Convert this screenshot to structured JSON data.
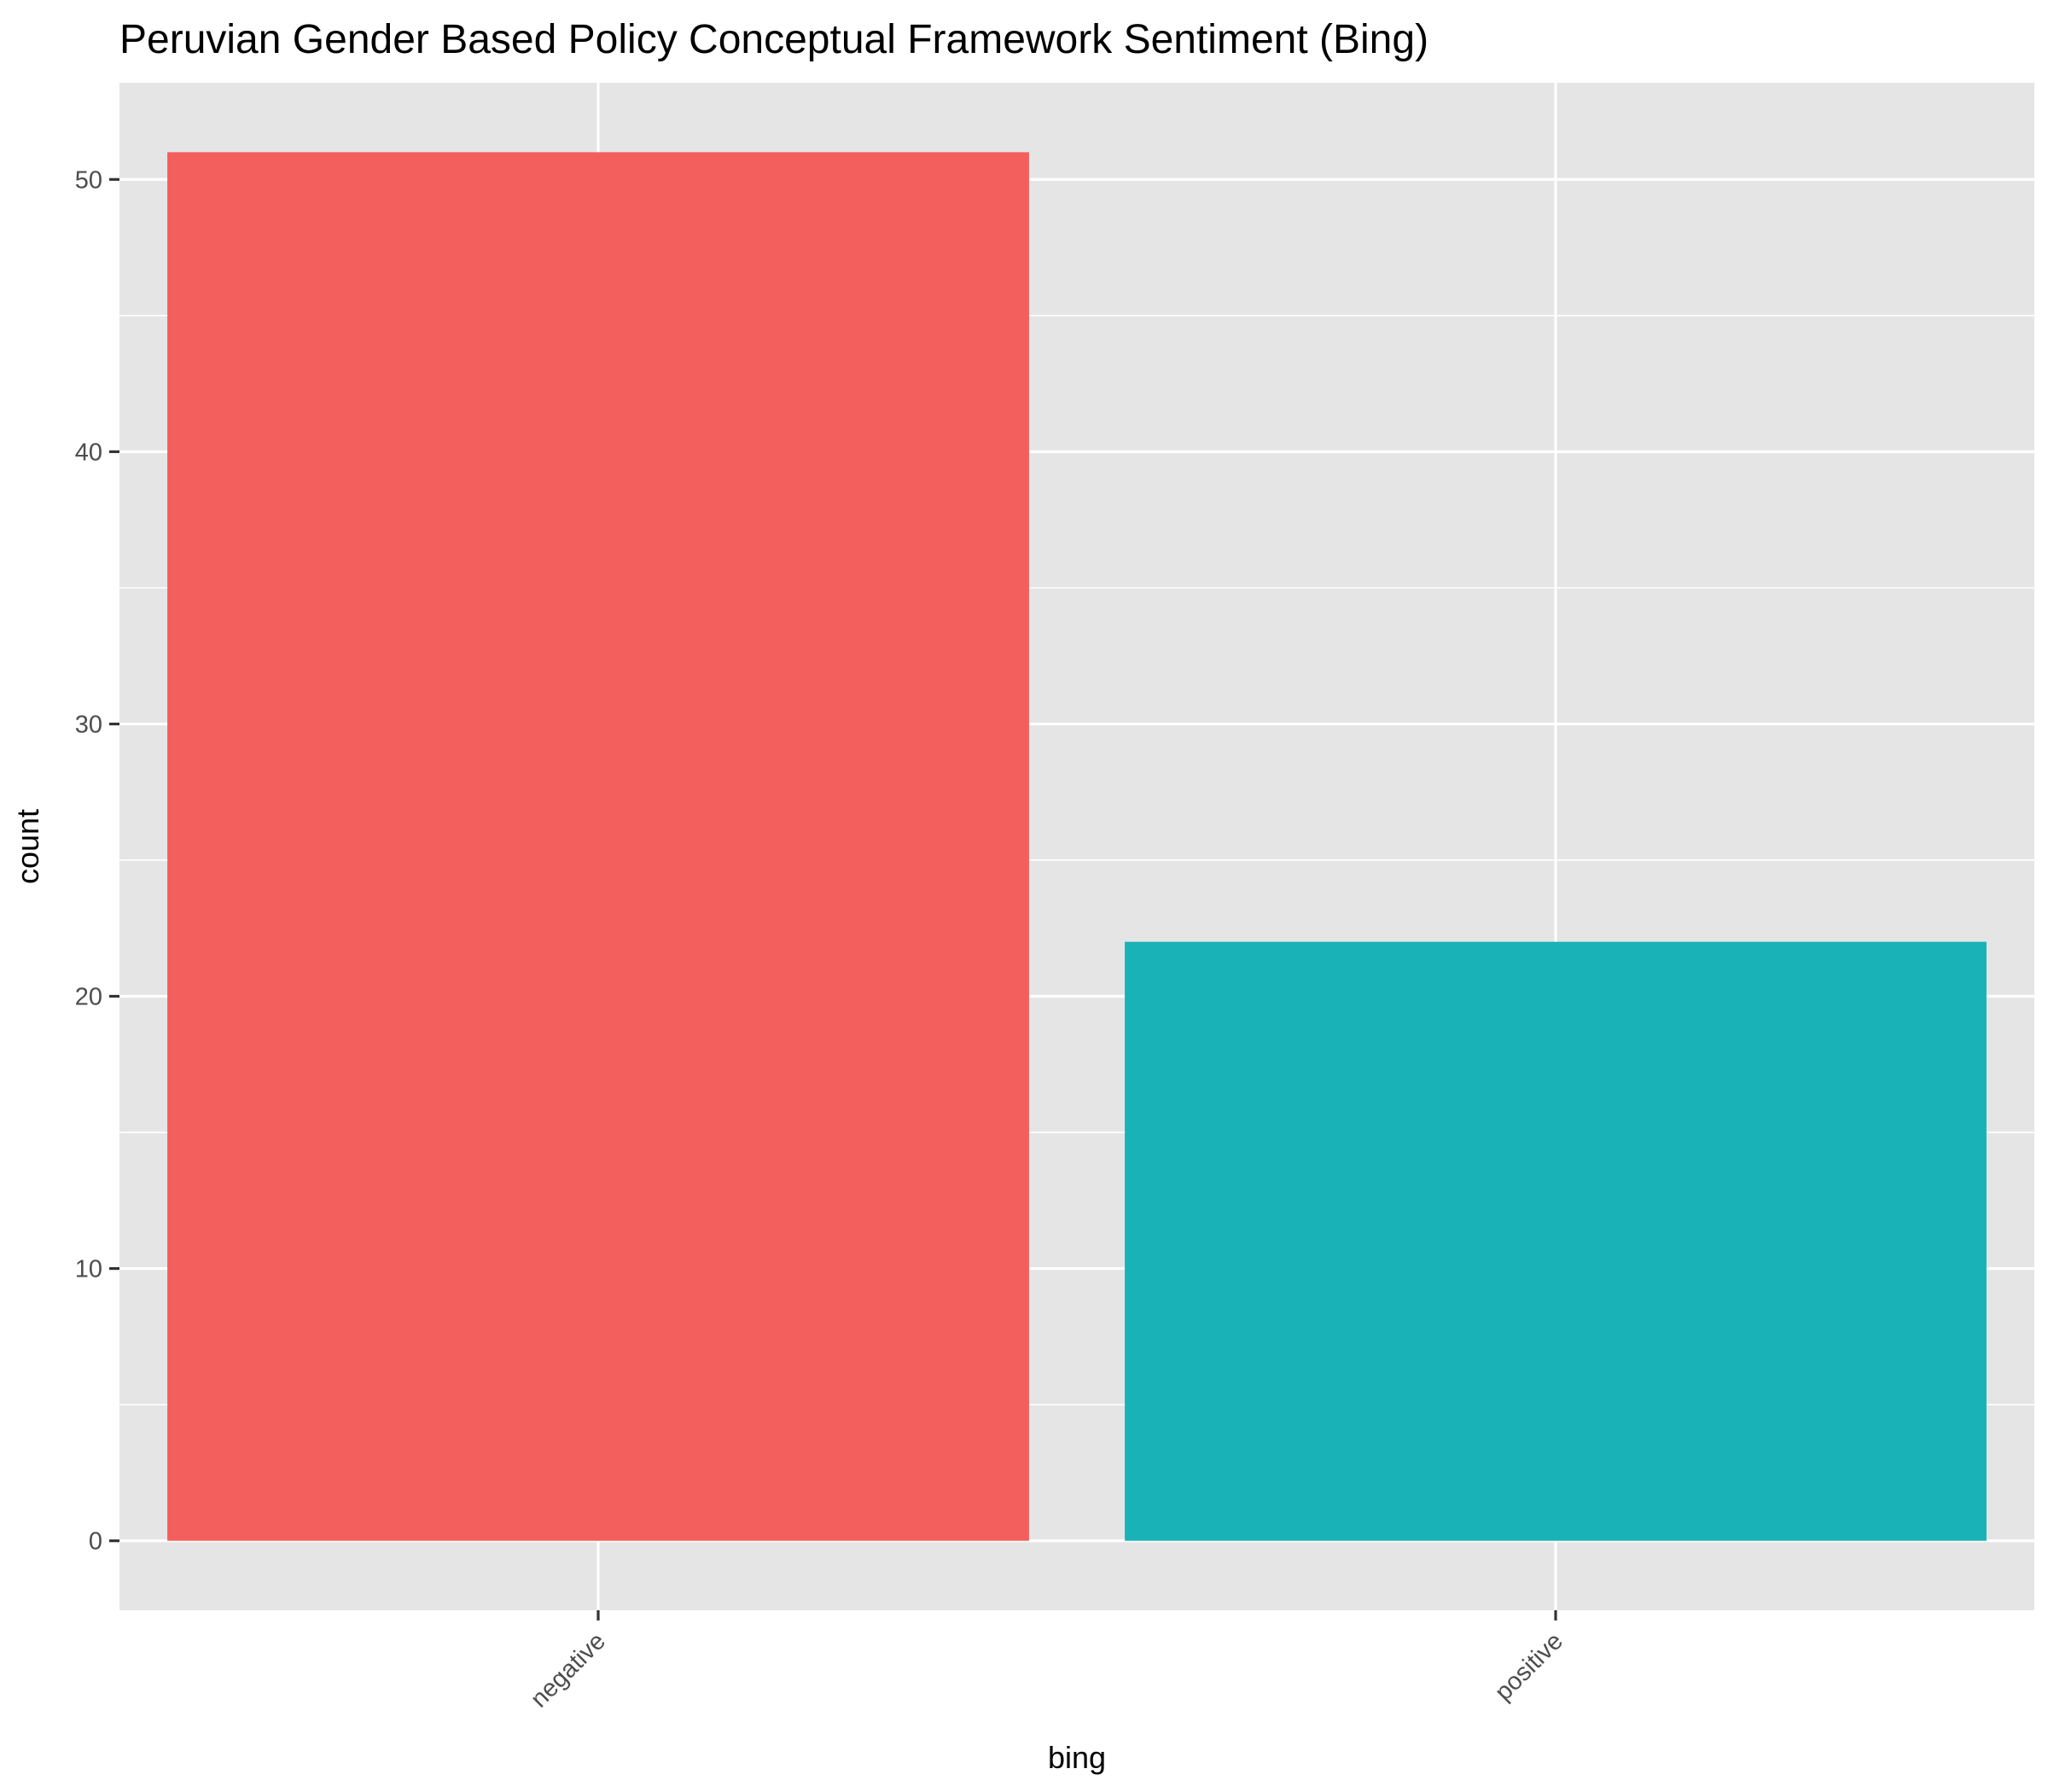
{
  "chart_data": {
    "type": "bar",
    "title": "Peruvian Gender Based Policy Conceptual Framework Sentiment (Bing)",
    "xlabel": "bing",
    "ylabel": "count",
    "categories": [
      "negative",
      "positive"
    ],
    "values": [
      51,
      22
    ],
    "colors": [
      "#F25F5C",
      "#19B2B6"
    ],
    "ylim": [
      -2.55,
      53.55
    ],
    "yticks": [
      0,
      10,
      20,
      30,
      40,
      50
    ],
    "grid": true,
    "legend": "none"
  },
  "theme": {
    "panel_background": "#E5E5E5",
    "grid_color": "#FFFFFF",
    "tick_color": "#333333"
  }
}
